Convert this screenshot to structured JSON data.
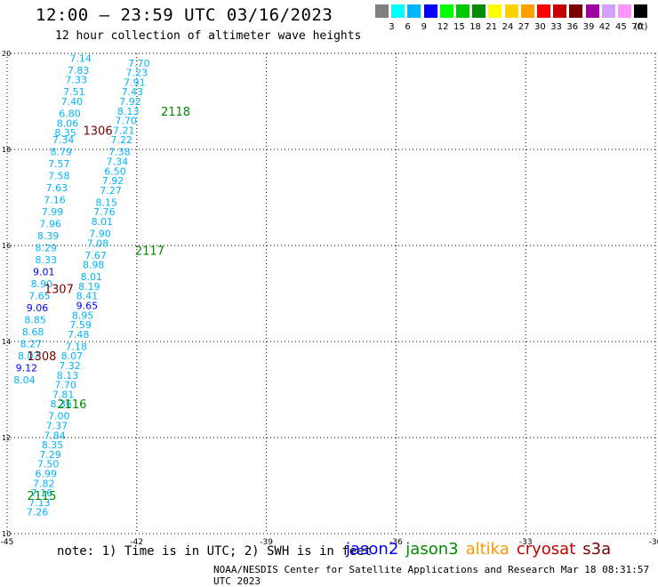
{
  "title": "12:00 – 23:59 UTC 03/16/2023",
  "subtitle": "12 hour collection of altimeter wave heights",
  "legend": {
    "unit_label": "(ft)",
    "levels": [
      "3",
      "6",
      "9",
      "12",
      "15",
      "18",
      "21",
      "24",
      "27",
      "30",
      "33",
      "36",
      "39",
      "42",
      "45",
      "70"
    ],
    "colors": [
      "#808080",
      "#00ffff",
      "#00b4ff",
      "#0000ff",
      "#00ff00",
      "#00c800",
      "#008c00",
      "#ffff00",
      "#ffd200",
      "#ffa000",
      "#ff0000",
      "#c80000",
      "#780000",
      "#a000a0",
      "#d2a0ff",
      "#ff96ff",
      "#000000"
    ]
  },
  "note": "note:  1) Time is in UTC; 2) SWH is in feet",
  "satellites": [
    {
      "name": "jason2",
      "color": "#0000ff"
    },
    {
      "name": "jason3",
      "color": "#008c00"
    },
    {
      "name": "altika",
      "color": "#ff9900"
    },
    {
      "name": "cryosat",
      "color": "#c80000"
    },
    {
      "name": "s3a",
      "color": "#780000"
    }
  ],
  "credit": "NOAA/NESDIS Center for Satellite Applications and Research     Mar 18 08:31:57 UTC 2023",
  "chart_data": {
    "type": "scatter",
    "xlim": [
      -45,
      -30
    ],
    "ylim": [
      10,
      20
    ],
    "x_ticks": [
      "-45",
      "-42",
      "-39",
      "-36",
      "-33",
      "-30"
    ],
    "y_ticks": [
      "10",
      "12",
      "14",
      "16",
      "18",
      "20"
    ],
    "grid": true,
    "track_labels": [
      {
        "text": "2118",
        "x": -41.1,
        "y": 18.8,
        "color": "#008c00"
      },
      {
        "text": "2117",
        "x": -41.7,
        "y": 15.9,
        "color": "#008c00"
      },
      {
        "text": "2116",
        "x": -43.5,
        "y": 12.7,
        "color": "#008c00"
      },
      {
        "text": "2115",
        "x": -44.2,
        "y": 10.8,
        "color": "#008c00"
      },
      {
        "text": "1306",
        "x": -42.9,
        "y": 18.4,
        "color": "#780000"
      },
      {
        "text": "1307",
        "x": -43.8,
        "y": 15.1,
        "color": "#780000"
      },
      {
        "text": "1308",
        "x": -44.2,
        "y": 13.7,
        "color": "#780000"
      }
    ],
    "points": [
      {
        "v": "7.14",
        "x": -43.3,
        "y": 19.9,
        "c": "#00b4ff"
      },
      {
        "v": "7.83",
        "x": -43.35,
        "y": 19.65,
        "c": "#00b4ff"
      },
      {
        "v": "7.33",
        "x": -43.4,
        "y": 19.45,
        "c": "#00b4ff"
      },
      {
        "v": "7.51",
        "x": -43.45,
        "y": 19.2,
        "c": "#00b4ff"
      },
      {
        "v": "7.40",
        "x": -43.5,
        "y": 19.0,
        "c": "#00b4ff"
      },
      {
        "v": "6.80",
        "x": -43.55,
        "y": 18.75,
        "c": "#00b4ff"
      },
      {
        "v": "8.06",
        "x": -43.6,
        "y": 18.55,
        "c": "#00b4ff"
      },
      {
        "v": "8.35",
        "x": -43.65,
        "y": 18.35,
        "c": "#00b4ff"
      },
      {
        "v": "7.34",
        "x": -43.7,
        "y": 18.2,
        "c": "#00b4ff"
      },
      {
        "v": "8.79",
        "x": -43.75,
        "y": 17.95,
        "c": "#00b4ff"
      },
      {
        "v": "7.57",
        "x": -43.8,
        "y": 17.7,
        "c": "#00b4ff"
      },
      {
        "v": "7.58",
        "x": -43.8,
        "y": 17.45,
        "c": "#00b4ff"
      },
      {
        "v": "7.63",
        "x": -43.85,
        "y": 17.2,
        "c": "#00b4ff"
      },
      {
        "v": "7.16",
        "x": -43.9,
        "y": 16.95,
        "c": "#00b4ff"
      },
      {
        "v": "7.99",
        "x": -43.95,
        "y": 16.7,
        "c": "#00b4ff"
      },
      {
        "v": "7.96",
        "x": -44.0,
        "y": 16.45,
        "c": "#00b4ff"
      },
      {
        "v": "8.39",
        "x": -44.05,
        "y": 16.2,
        "c": "#00b4ff"
      },
      {
        "v": "8.29",
        "x": -44.1,
        "y": 15.95,
        "c": "#00b4ff"
      },
      {
        "v": "8.33",
        "x": -44.1,
        "y": 15.7,
        "c": "#00b4ff"
      },
      {
        "v": "9.01",
        "x": -44.15,
        "y": 15.45,
        "c": "#0000ff"
      },
      {
        "v": "8.90",
        "x": -44.2,
        "y": 15.2,
        "c": "#00b4ff"
      },
      {
        "v": "7.65",
        "x": -44.25,
        "y": 14.95,
        "c": "#00b4ff"
      },
      {
        "v": "9.06",
        "x": -44.3,
        "y": 14.7,
        "c": "#0000ff"
      },
      {
        "v": "8.85",
        "x": -44.35,
        "y": 14.45,
        "c": "#00b4ff"
      },
      {
        "v": "8.68",
        "x": -44.4,
        "y": 14.2,
        "c": "#00b4ff"
      },
      {
        "v": "8.27",
        "x": -44.45,
        "y": 13.95,
        "c": "#00b4ff"
      },
      {
        "v": "8.07",
        "x": -44.5,
        "y": 13.7,
        "c": "#00b4ff"
      },
      {
        "v": "9.12",
        "x": -44.55,
        "y": 13.45,
        "c": "#0000ff"
      },
      {
        "v": "8.04",
        "x": -44.6,
        "y": 13.2,
        "c": "#00b4ff"
      },
      {
        "v": "7.70",
        "x": -41.95,
        "y": 19.8,
        "c": "#00b4ff"
      },
      {
        "v": "7.23",
        "x": -42.0,
        "y": 19.6,
        "c": "#00b4ff"
      },
      {
        "v": "7.91",
        "x": -42.05,
        "y": 19.4,
        "c": "#00b4ff"
      },
      {
        "v": "7.43",
        "x": -42.1,
        "y": 19.2,
        "c": "#00b4ff"
      },
      {
        "v": "7.92",
        "x": -42.15,
        "y": 19.0,
        "c": "#00b4ff"
      },
      {
        "v": "8.13",
        "x": -42.2,
        "y": 18.8,
        "c": "#00b4ff"
      },
      {
        "v": "7.70",
        "x": -42.25,
        "y": 18.6,
        "c": "#00b4ff"
      },
      {
        "v": "7.21",
        "x": -42.3,
        "y": 18.4,
        "c": "#00b4ff"
      },
      {
        "v": "7.22",
        "x": -42.35,
        "y": 18.2,
        "c": "#00b4ff"
      },
      {
        "v": "7.38",
        "x": -42.4,
        "y": 17.95,
        "c": "#00b4ff"
      },
      {
        "v": "7.34",
        "x": -42.45,
        "y": 17.75,
        "c": "#00b4ff"
      },
      {
        "v": "6.50",
        "x": -42.5,
        "y": 17.55,
        "c": "#00b4ff"
      },
      {
        "v": "7.92",
        "x": -42.55,
        "y": 17.35,
        "c": "#00b4ff"
      },
      {
        "v": "7.27",
        "x": -42.6,
        "y": 17.15,
        "c": "#00b4ff"
      },
      {
        "v": "8.15",
        "x": -42.7,
        "y": 16.9,
        "c": "#00b4ff"
      },
      {
        "v": "7.76",
        "x": -42.75,
        "y": 16.7,
        "c": "#00b4ff"
      },
      {
        "v": "8.01",
        "x": -42.8,
        "y": 16.5,
        "c": "#00b4ff"
      },
      {
        "v": "7.90",
        "x": -42.85,
        "y": 16.25,
        "c": "#00b4ff"
      },
      {
        "v": "7.08",
        "x": -42.9,
        "y": 16.05,
        "c": "#00b4ff"
      },
      {
        "v": "7.67",
        "x": -42.95,
        "y": 15.8,
        "c": "#00b4ff"
      },
      {
        "v": "8.98",
        "x": -43.0,
        "y": 15.6,
        "c": "#00b4ff"
      },
      {
        "v": "8.01",
        "x": -43.05,
        "y": 15.35,
        "c": "#00b4ff"
      },
      {
        "v": "8.19",
        "x": -43.1,
        "y": 15.15,
        "c": "#00b4ff"
      },
      {
        "v": "8.41",
        "x": -43.15,
        "y": 14.95,
        "c": "#00b4ff"
      },
      {
        "v": "9.65",
        "x": -43.15,
        "y": 14.75,
        "c": "#0000ff"
      },
      {
        "v": "8.95",
        "x": -43.25,
        "y": 14.55,
        "c": "#00b4ff"
      },
      {
        "v": "7.59",
        "x": -43.3,
        "y": 14.35,
        "c": "#00b4ff"
      },
      {
        "v": "7.48",
        "x": -43.35,
        "y": 14.15,
        "c": "#00b4ff"
      },
      {
        "v": "7.18",
        "x": -43.4,
        "y": 13.9,
        "c": "#00b4ff"
      },
      {
        "v": "8.07",
        "x": -43.5,
        "y": 13.7,
        "c": "#00b4ff"
      },
      {
        "v": "7.32",
        "x": -43.55,
        "y": 13.5,
        "c": "#00b4ff"
      },
      {
        "v": "8.13",
        "x": -43.6,
        "y": 13.3,
        "c": "#00b4ff"
      },
      {
        "v": "7.70",
        "x": -43.65,
        "y": 13.1,
        "c": "#00b4ff"
      },
      {
        "v": "7.81",
        "x": -43.7,
        "y": 12.9,
        "c": "#00b4ff"
      },
      {
        "v": "8.36",
        "x": -43.75,
        "y": 12.7,
        "c": "#00b4ff"
      },
      {
        "v": "7.00",
        "x": -43.8,
        "y": 12.45,
        "c": "#00b4ff"
      },
      {
        "v": "7.37",
        "x": -43.85,
        "y": 12.25,
        "c": "#00b4ff"
      },
      {
        "v": "7.84",
        "x": -43.9,
        "y": 12.05,
        "c": "#00b4ff"
      },
      {
        "v": "8.35",
        "x": -43.95,
        "y": 11.85,
        "c": "#00b4ff"
      },
      {
        "v": "7.29",
        "x": -44.0,
        "y": 11.65,
        "c": "#00b4ff"
      },
      {
        "v": "7.50",
        "x": -44.05,
        "y": 11.45,
        "c": "#00b4ff"
      },
      {
        "v": "6.99",
        "x": -44.1,
        "y": 11.25,
        "c": "#00b4ff"
      },
      {
        "v": "7.82",
        "x": -44.15,
        "y": 11.05,
        "c": "#00b4ff"
      },
      {
        "v": "7.16",
        "x": -44.2,
        "y": 10.85,
        "c": "#00b4ff"
      },
      {
        "v": "7.13",
        "x": -44.25,
        "y": 10.65,
        "c": "#00b4ff"
      },
      {
        "v": "7.26",
        "x": -44.3,
        "y": 10.45,
        "c": "#00b4ff"
      }
    ]
  }
}
